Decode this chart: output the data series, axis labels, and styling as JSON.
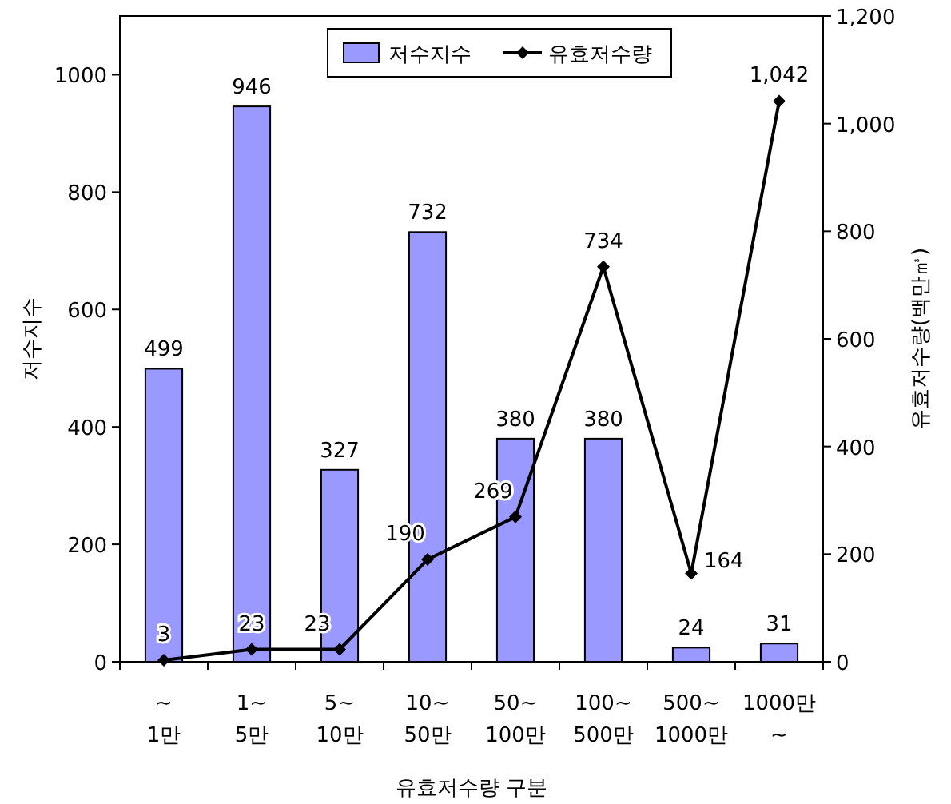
{
  "chart_data": {
    "type": "bar",
    "xlabel": "유효저수량 구분",
    "ylabel": "저수지수",
    "y2label": "유효저수량(백만㎥)",
    "categories": [
      "~\n1만",
      "1~\n5만",
      "5~\n10만",
      "10~\n50만",
      "50~\n100만",
      "100~\n500만",
      "500~\n1000만",
      "1000만\n~"
    ],
    "series": [
      {
        "name": "저수지수",
        "color": "#9999ff",
        "values": [
          499,
          946,
          327,
          732,
          380,
          380,
          24,
          31
        ],
        "value_labels": [
          "499",
          "946",
          "327",
          "732",
          "380",
          "380",
          "24",
          "31"
        ]
      },
      {
        "name": "유효저수량",
        "type": "line",
        "axis": "y2",
        "color": "#000000",
        "marker": "diamond",
        "values": [
          3,
          23,
          23,
          190,
          269,
          734,
          164,
          1042
        ],
        "value_labels": [
          "3",
          "23",
          "23",
          "190",
          "269",
          "734",
          "164",
          "1,042"
        ]
      }
    ],
    "ylim": [
      0,
      1100
    ],
    "yticks": [
      0,
      200,
      400,
      600,
      800,
      1000
    ],
    "y2lim": [
      0,
      1200
    ],
    "y2ticks": [
      0,
      200,
      400,
      600,
      800,
      {
        "value": 1000,
        "label": "1,000"
      },
      {
        "value": 1200,
        "label": "1,200"
      }
    ],
    "legend": "top",
    "grid": false
  }
}
